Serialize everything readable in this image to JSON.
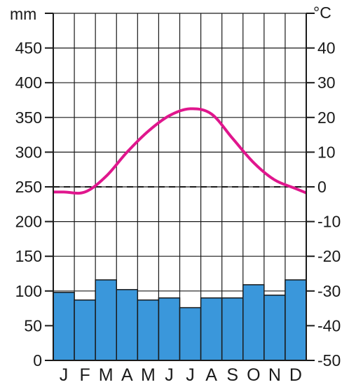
{
  "chart_data": {
    "type": "climate-diagram",
    "left_axis_unit": "mm",
    "right_axis_unit": "°C",
    "left_ylim": [
      0,
      500
    ],
    "right_ylim": [
      -50,
      50
    ],
    "left_ticks": [
      "0",
      "50",
      "100",
      "150",
      "200",
      "250",
      "300",
      "350",
      "400",
      "450"
    ],
    "right_ticks": [
      "-50",
      "-40",
      "-30",
      "-20",
      "-10",
      "0",
      "10",
      "20",
      "30",
      "40"
    ],
    "categories": [
      "J",
      "F",
      "M",
      "A",
      "M",
      "J",
      "J",
      "A",
      "S",
      "O",
      "N",
      "D"
    ],
    "series": [
      {
        "kind": "bar",
        "axis": "left",
        "color": "#3a97db",
        "values": [
          98,
          87,
          116,
          102,
          87,
          90,
          76,
          90,
          90,
          109,
          94,
          116
        ]
      },
      {
        "kind": "line",
        "axis": "right",
        "color": "#e0168d",
        "values": [
          -1.5,
          -1.5,
          3,
          10,
          16,
          20.5,
          22.5,
          21,
          14,
          7,
          2,
          -0.5
        ]
      }
    ],
    "reference_line": {
      "axis": "right",
      "value": 0,
      "style": "dashed"
    },
    "grid": true
  }
}
